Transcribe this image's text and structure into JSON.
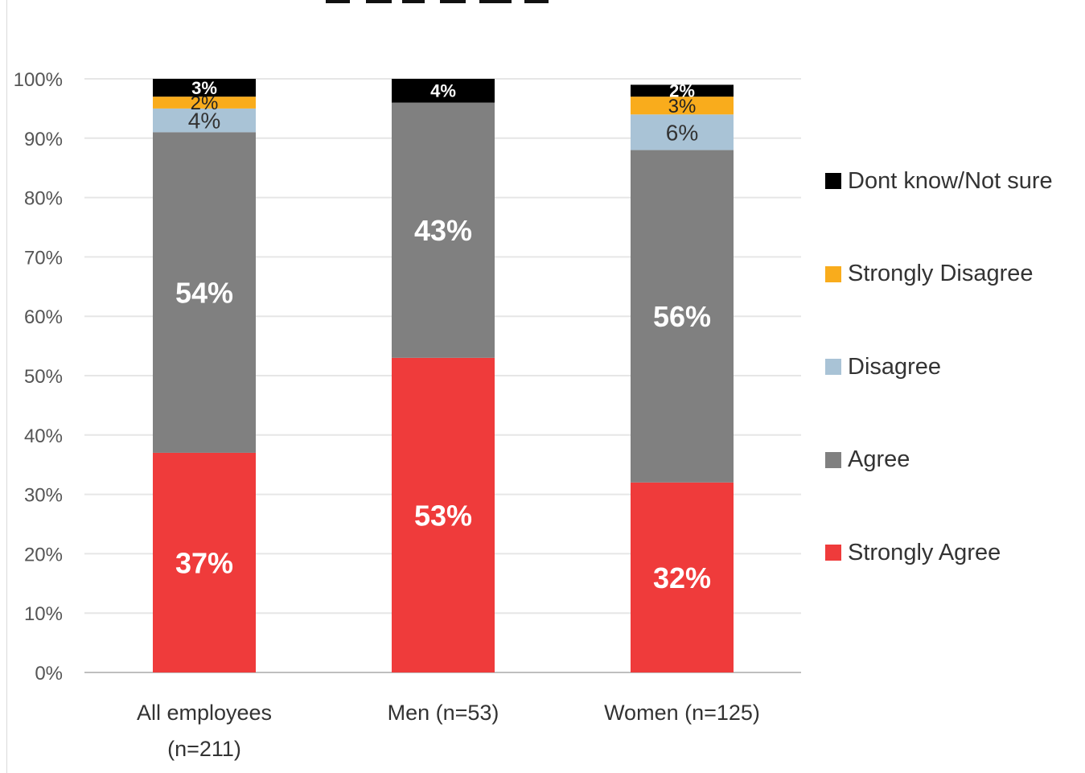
{
  "chart_data": {
    "type": "bar",
    "stacked": true,
    "title": "",
    "categories": [
      "All employees (n=211)",
      "Men (n=53)",
      "Women (n=125)"
    ],
    "category_lines": [
      [
        "All employees",
        "(n=211)"
      ],
      [
        "Men (n=53)"
      ],
      [
        "Women (n=125)"
      ]
    ],
    "series": [
      {
        "name": "Strongly Agree",
        "color": "#ef3b3b",
        "label_color": "#ffffff",
        "label_weight": "bold",
        "label_size": 36,
        "values": [
          37,
          53,
          32
        ],
        "labels": [
          "37%",
          "53%",
          "32%"
        ]
      },
      {
        "name": "Agree",
        "color": "#808080",
        "label_color": "#ffffff",
        "label_weight": "bold",
        "label_size": 36,
        "values": [
          54,
          43,
          56
        ],
        "labels": [
          "54%",
          "43%",
          "56%"
        ]
      },
      {
        "name": "Disagree",
        "color": "#a9c3d6",
        "label_color": "#333333",
        "label_weight": "normal",
        "label_size": 28,
        "values": [
          4,
          0,
          6
        ],
        "labels": [
          "4%",
          "",
          "6%"
        ]
      },
      {
        "name": "Strongly Disagree",
        "color": "#f9ac1c",
        "label_color": "#222222",
        "label_weight": "normal",
        "label_size": 24,
        "values": [
          2,
          0,
          3
        ],
        "labels": [
          "2%",
          "",
          "3%"
        ]
      },
      {
        "name": "Dont know/Not sure",
        "color": "#000000",
        "label_color": "#ffffff",
        "label_weight": "bold",
        "label_size": 22,
        "values": [
          3,
          4,
          2
        ],
        "labels": [
          "3%",
          "4%",
          "2%"
        ]
      }
    ],
    "ylim": [
      0,
      100
    ],
    "y_ticks": [
      "0%",
      "10%",
      "20%",
      "30%",
      "40%",
      "50%",
      "60%",
      "70%",
      "80%",
      "90%",
      "100%"
    ],
    "xlabel": "",
    "ylabel": "",
    "grid": true,
    "legend_position": "right",
    "legend_order": [
      "Dont know/Not sure",
      "Strongly Disagree",
      "Disagree",
      "Agree",
      "Strongly Agree"
    ]
  },
  "colors": {
    "grid": "#e6e6e6",
    "axis": "#bfbfbf",
    "tick_text": "#555555",
    "category_text": "#333333"
  }
}
